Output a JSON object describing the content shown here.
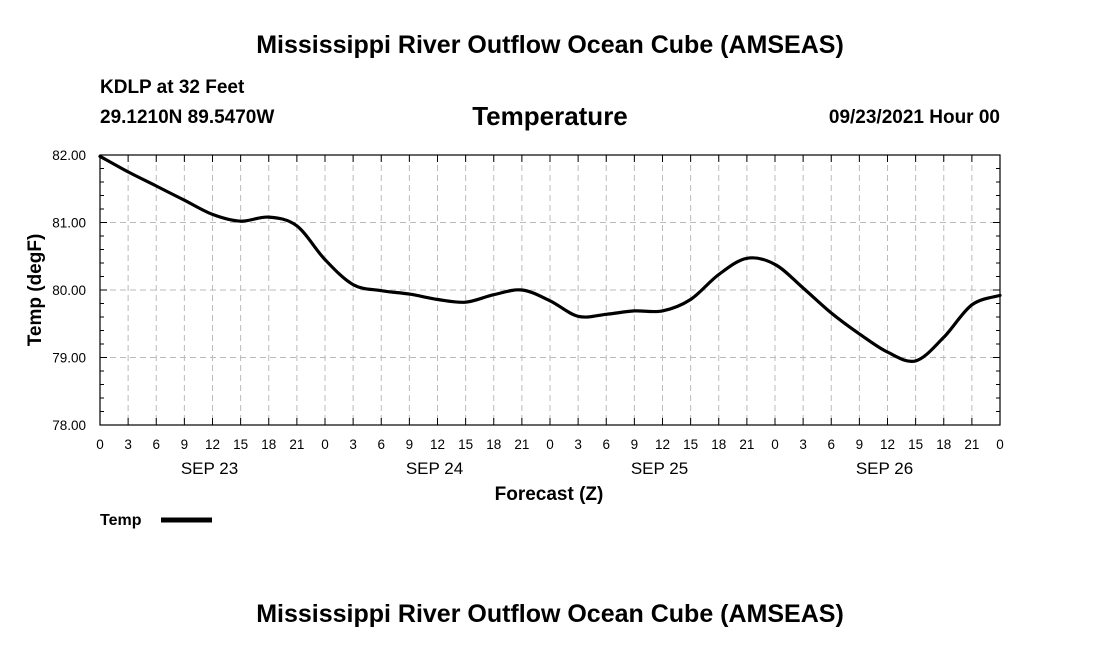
{
  "header": {
    "title": "Mississippi River Outflow Ocean Cube (AMSEAS)",
    "station": "KDLP at 32 Feet",
    "coords": "29.1210N  89.5470W",
    "panel_title": "Temperature",
    "date": "09/23/2021 Hour 00"
  },
  "footer": {
    "title": "Mississippi River Outflow Ocean Cube (AMSEAS)"
  },
  "chart_data": {
    "type": "line",
    "title": "Temperature",
    "xlabel": "Forecast (Z)",
    "ylabel": "Temp (degF)",
    "ylim": [
      78.0,
      82.0
    ],
    "xlim": [
      0,
      96
    ],
    "yticks": [
      "78.00",
      "79.00",
      "80.00",
      "81.00",
      "82.00"
    ],
    "xticks": [
      "0",
      "3",
      "6",
      "9",
      "12",
      "15",
      "18",
      "21",
      "0",
      "3",
      "6",
      "9",
      "12",
      "15",
      "18",
      "21",
      "0",
      "3",
      "6",
      "9",
      "12",
      "15",
      "18",
      "21",
      "0",
      "3",
      "6",
      "9",
      "12",
      "15",
      "18",
      "21",
      "0"
    ],
    "day_labels": [
      "SEP 23",
      "SEP 24",
      "SEP 25",
      "SEP 26"
    ],
    "grid": true,
    "legend": {
      "label": "Temp",
      "position": "bottom-left"
    },
    "series": [
      {
        "name": "Temp",
        "x": [
          0,
          3,
          6,
          9,
          12,
          15,
          18,
          21,
          24,
          27,
          30,
          33,
          36,
          39,
          42,
          45,
          48,
          51,
          54,
          57,
          60,
          63,
          66,
          69,
          72,
          75,
          78,
          81,
          84,
          87,
          90,
          93,
          96
        ],
        "values": [
          81.98,
          81.75,
          81.54,
          81.33,
          81.12,
          81.02,
          81.08,
          80.95,
          80.45,
          80.08,
          79.99,
          79.94,
          79.86,
          79.82,
          79.93,
          80.0,
          79.84,
          79.61,
          79.64,
          79.69,
          79.69,
          79.86,
          80.23,
          80.47,
          80.38,
          80.03,
          79.66,
          79.35,
          79.08,
          78.95,
          79.3,
          79.78,
          79.92
        ]
      }
    ]
  }
}
